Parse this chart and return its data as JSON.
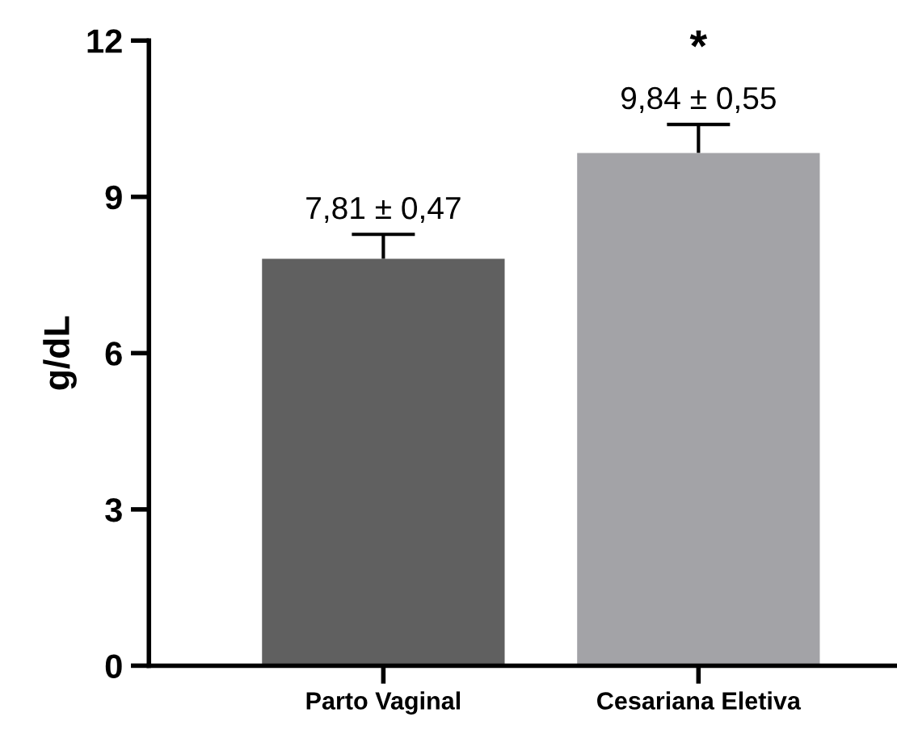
{
  "chart_data": {
    "type": "bar",
    "ylabel": "g/dL",
    "categories": [
      "Parto Vaginal",
      "Cesariana Eletiva"
    ],
    "values": [
      7.81,
      9.84
    ],
    "colors": [
      "#606060",
      "#a3a3a7"
    ],
    "errors": [
      [
        7.81,
        8.28
      ],
      [
        9.84,
        10.39
      ]
    ],
    "value_labels": [
      "7,81 ± 0,47",
      "9,84 ± 0,55"
    ],
    "annotations": [
      "*"
    ],
    "ylim": [
      0,
      12
    ],
    "yticks": [
      0,
      3,
      6,
      9,
      12
    ],
    "grid": false,
    "legend": false
  }
}
